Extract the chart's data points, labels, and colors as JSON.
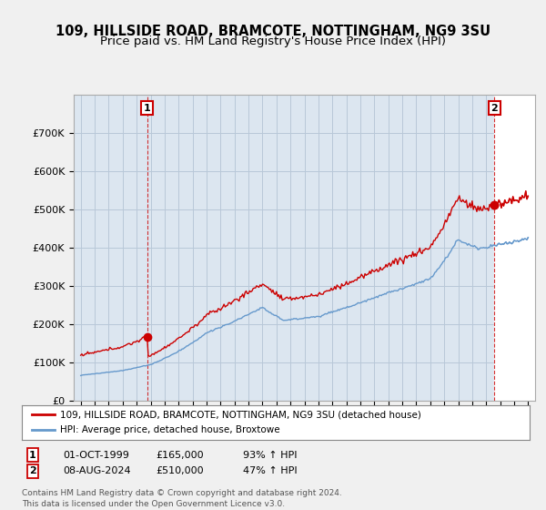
{
  "title1": "109, HILLSIDE ROAD, BRAMCOTE, NOTTINGHAM, NG9 3SU",
  "title2": "Price paid vs. HM Land Registry's House Price Index (HPI)",
  "ylim": [
    0,
    800000
  ],
  "yticks": [
    0,
    100000,
    200000,
    300000,
    400000,
    500000,
    600000,
    700000
  ],
  "legend_entry1": "109, HILLSIDE ROAD, BRAMCOTE, NOTTINGHAM, NG9 3SU (detached house)",
  "legend_entry2": "HPI: Average price, detached house, Broxtowe",
  "sale1_year": 1999.75,
  "sale1_price": 165000,
  "sale2_year": 2024.583,
  "sale2_price": 510000,
  "footer": "Contains HM Land Registry data © Crown copyright and database right 2024.\nThis data is licensed under the Open Government Licence v3.0.",
  "red_color": "#cc0000",
  "blue_color": "#6699cc",
  "bg_color": "#f0f0f0",
  "plot_bg": "#dce6f0",
  "grid_color": "#b8c8d8",
  "title_fontsize": 10.5,
  "subtitle_fontsize": 9.5,
  "xmin": 1995,
  "xmax": 2027
}
